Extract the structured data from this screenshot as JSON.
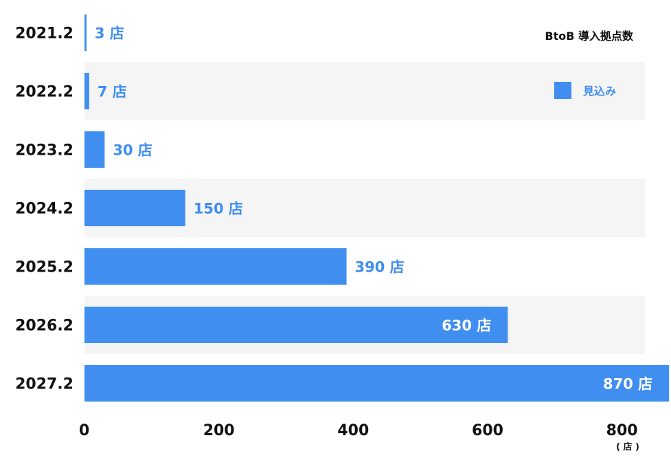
{
  "chart_data": {
    "type": "bar",
    "orientation": "horizontal",
    "title": "BtoB 導入拠点数",
    "categories": [
      "2021.2",
      "2022.2",
      "2023.2",
      "2024.2",
      "2025.2",
      "2026.2",
      "2027.2"
    ],
    "series": [
      {
        "name": "見込み",
        "values": [
          3,
          7,
          30,
          150,
          390,
          630,
          870
        ]
      }
    ],
    "data_labels": [
      "3 店",
      "7 店",
      "30 店",
      "150 店",
      "390 店",
      "630 店",
      "870 店"
    ],
    "xlim": [
      0,
      830
    ],
    "xticks": [
      "0",
      "200",
      "400",
      "600",
      "800"
    ],
    "xticks_values": [
      0,
      200,
      400,
      600,
      800
    ],
    "xunit": "( 店 )",
    "legend_position": "top-right",
    "grid": false,
    "colors": {
      "bar": "#3f8ef0",
      "label_outside": "#3f8ef0",
      "label_inside": "#ffffff",
      "band": "#f5f5f5"
    }
  }
}
